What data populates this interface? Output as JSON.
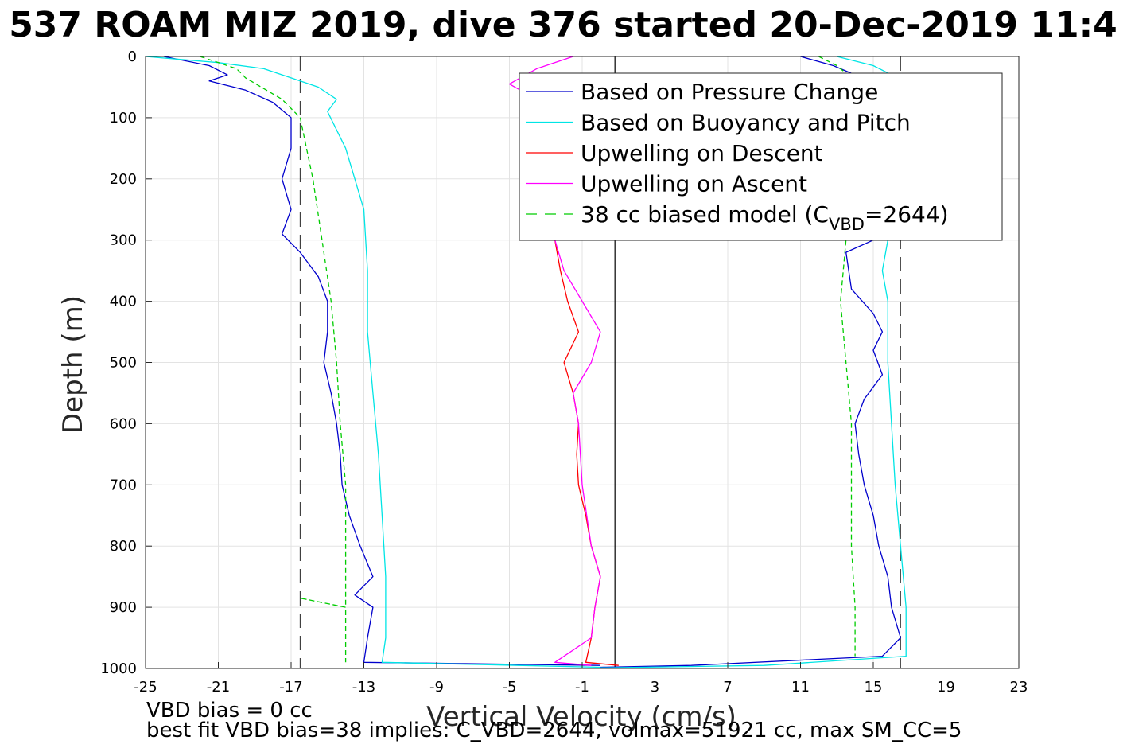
{
  "chart_data": {
    "type": "line",
    "title": "537 ROAM MIZ 2019, dive 376 started 20-Dec-2019 11:4",
    "xlabel": "Vertical Velocity (cm/s)",
    "ylabel": "Depth (m)",
    "xlim": [
      -25,
      23
    ],
    "ylim": [
      0,
      1000
    ],
    "y_reversed": true,
    "grid": true,
    "legend_position": "top-right",
    "x_ticks": [
      "-25",
      "-21",
      "-17",
      "-13",
      "-9",
      "-5",
      "-1",
      "3",
      "7",
      "11",
      "15",
      "19",
      "23"
    ],
    "y_ticks": [
      "0",
      "100",
      "200",
      "300",
      "400",
      "500",
      "600",
      "700",
      "800",
      "900",
      "1000"
    ],
    "reference_lines": [
      {
        "x": -16.5,
        "style": "dashed",
        "color": "#404040"
      },
      {
        "x": 0.8,
        "style": "solid",
        "color": "#000000"
      },
      {
        "x": 16.5,
        "style": "dashed",
        "color": "#404040"
      }
    ],
    "series": [
      {
        "name": "Based on Pressure Change",
        "color": "#0000cc",
        "style": "solid",
        "points": [
          [
            [
              -24,
              0
            ],
            [
              -21.5,
              15
            ],
            [
              -20.5,
              30
            ],
            [
              -21.5,
              40
            ],
            [
              -19.5,
              55
            ],
            [
              -18,
              75
            ],
            [
              -17,
              100
            ],
            [
              -17,
              150
            ],
            [
              -17.5,
              200
            ],
            [
              -17,
              250
            ],
            [
              -17.5,
              290
            ],
            [
              -16.5,
              320
            ],
            [
              -15.5,
              360
            ],
            [
              -15,
              400
            ],
            [
              -15,
              450
            ],
            [
              -15.2,
              500
            ],
            [
              -14.8,
              550
            ],
            [
              -14.5,
              600
            ],
            [
              -14.3,
              650
            ],
            [
              -14.2,
              700
            ],
            [
              -13.8,
              750
            ],
            [
              -13.2,
              800
            ],
            [
              -12.5,
              850
            ],
            [
              -13.5,
              880
            ],
            [
              -12.5,
              900
            ],
            [
              -12.8,
              950
            ],
            [
              -13,
              990
            ],
            [
              0,
              995
            ]
          ],
          [
            [
              11,
              0
            ],
            [
              12.8,
              15
            ],
            [
              14,
              30
            ],
            [
              14.2,
              45
            ],
            [
              15.2,
              60
            ],
            [
              15,
              300
            ],
            [
              13.5,
              320
            ],
            [
              13.8,
              380
            ],
            [
              15,
              420
            ],
            [
              15.5,
              450
            ],
            [
              15,
              480
            ],
            [
              15.5,
              520
            ],
            [
              14.5,
              560
            ],
            [
              14,
              600
            ],
            [
              14.2,
              650
            ],
            [
              14.5,
              700
            ],
            [
              15,
              750
            ],
            [
              15.3,
              800
            ],
            [
              15.8,
              850
            ],
            [
              16,
              900
            ],
            [
              16.5,
              950
            ],
            [
              15.5,
              980
            ],
            [
              5,
              995
            ],
            [
              0,
              998
            ]
          ]
        ]
      },
      {
        "name": "Based on Buoyancy and Pitch",
        "color": "#00e5e5",
        "style": "solid",
        "points": [
          [
            [
              -25,
              0
            ],
            [
              -21,
              10
            ],
            [
              -18.5,
              20
            ],
            [
              -17,
              35
            ],
            [
              -15.5,
              50
            ],
            [
              -14.5,
              70
            ],
            [
              -15,
              90
            ],
            [
              -14,
              150
            ],
            [
              -13.5,
              200
            ],
            [
              -13,
              250
            ],
            [
              -12.8,
              350
            ],
            [
              -12.8,
              450
            ],
            [
              -12.5,
              550
            ],
            [
              -12.2,
              650
            ],
            [
              -12,
              750
            ],
            [
              -11.8,
              850
            ],
            [
              -11.8,
              950
            ],
            [
              -12,
              990
            ],
            [
              0,
              998
            ]
          ],
          [
            [
              13,
              0
            ],
            [
              15,
              15
            ],
            [
              16,
              30
            ],
            [
              16,
              50
            ],
            [
              15.8,
              300
            ],
            [
              15.5,
              350
            ],
            [
              15.8,
              400
            ],
            [
              15.8,
              500
            ],
            [
              16,
              600
            ],
            [
              16.2,
              700
            ],
            [
              16.5,
              800
            ],
            [
              16.8,
              900
            ],
            [
              16.8,
              980
            ],
            [
              9,
              995
            ],
            [
              0,
              999
            ]
          ]
        ]
      },
      {
        "name": "Upwelling on Descent",
        "color": "#ff0000",
        "style": "solid",
        "points": [
          [
            [
              -2.5,
              300
            ],
            [
              -2.2,
              350
            ],
            [
              -1.8,
              400
            ],
            [
              -1.2,
              450
            ],
            [
              -2,
              500
            ],
            [
              -1.5,
              550
            ],
            [
              -1.2,
              600
            ],
            [
              -1.3,
              650
            ],
            [
              -1.2,
              700
            ],
            [
              -0.8,
              750
            ],
            [
              -0.5,
              800
            ],
            [
              0,
              850
            ],
            [
              -0.3,
              900
            ],
            [
              -0.5,
              950
            ],
            [
              -0.8,
              990
            ],
            [
              1,
              995
            ]
          ]
        ]
      },
      {
        "name": "Upwelling on Ascent",
        "color": "#ff00ff",
        "style": "solid",
        "points": [
          [
            [
              -1.5,
              0
            ],
            [
              -3.5,
              20
            ],
            [
              -5,
              45
            ],
            [
              -3.5,
              70
            ],
            [
              -2.5,
              100
            ]
          ],
          [
            [
              -2.5,
              300
            ],
            [
              -2,
              350
            ],
            [
              -1,
              400
            ],
            [
              0,
              450
            ],
            [
              -0.5,
              500
            ],
            [
              -1.5,
              550
            ],
            [
              -1.2,
              600
            ],
            [
              -1,
              700
            ],
            [
              -0.5,
              800
            ],
            [
              0,
              850
            ],
            [
              -0.3,
              900
            ],
            [
              -0.5,
              950
            ],
            [
              -2.5,
              990
            ],
            [
              -0.5,
              995
            ]
          ]
        ]
      },
      {
        "name": "38 cc biased model (C_VBD=2644)",
        "color": "#00cc00",
        "style": "dashed",
        "points": [
          [
            [
              -22,
              0
            ],
            [
              -20,
              20
            ],
            [
              -19.5,
              35
            ],
            [
              -17.5,
              70
            ],
            [
              -16.5,
              100
            ],
            [
              -15.8,
              200
            ],
            [
              -15.3,
              300
            ],
            [
              -14.8,
              400
            ],
            [
              -14.5,
              500
            ],
            [
              -14.3,
              600
            ],
            [
              -14,
              700
            ],
            [
              -14,
              800
            ],
            [
              -14,
              900
            ],
            [
              -16.5,
              885
            ],
            [
              -14,
              900
            ],
            [
              -14,
              990
            ]
          ],
          [
            [
              12,
              0
            ],
            [
              13,
              15
            ],
            [
              14,
              40
            ],
            [
              13.5,
              60
            ],
            [
              13.5,
              300
            ],
            [
              13.2,
              400
            ],
            [
              13.5,
              500
            ],
            [
              13.8,
              600
            ],
            [
              13.8,
              700
            ],
            [
              13.8,
              800
            ],
            [
              14,
              900
            ],
            [
              14,
              980
            ]
          ]
        ]
      }
    ]
  },
  "legend": {
    "items": [
      {
        "label": "Based on Pressure Change",
        "color": "#0000cc"
      },
      {
        "label": "Based on Buoyancy and Pitch",
        "color": "#00e5e5"
      },
      {
        "label": "Upwelling on Descent",
        "color": "#ff0000"
      },
      {
        "label": "Upwelling on Ascent",
        "color": "#ff00ff"
      },
      {
        "label_main": "38 cc biased model (C",
        "label_sub": "VBD",
        "label_tail": "=2644)",
        "color": "#00cc00"
      }
    ]
  },
  "footer": {
    "line1": "VBD bias = 0 cc",
    "line2": "best fit VBD bias=38 implies: C_VBD=2644, volmax=51921 cc, max SM_CC=5"
  }
}
